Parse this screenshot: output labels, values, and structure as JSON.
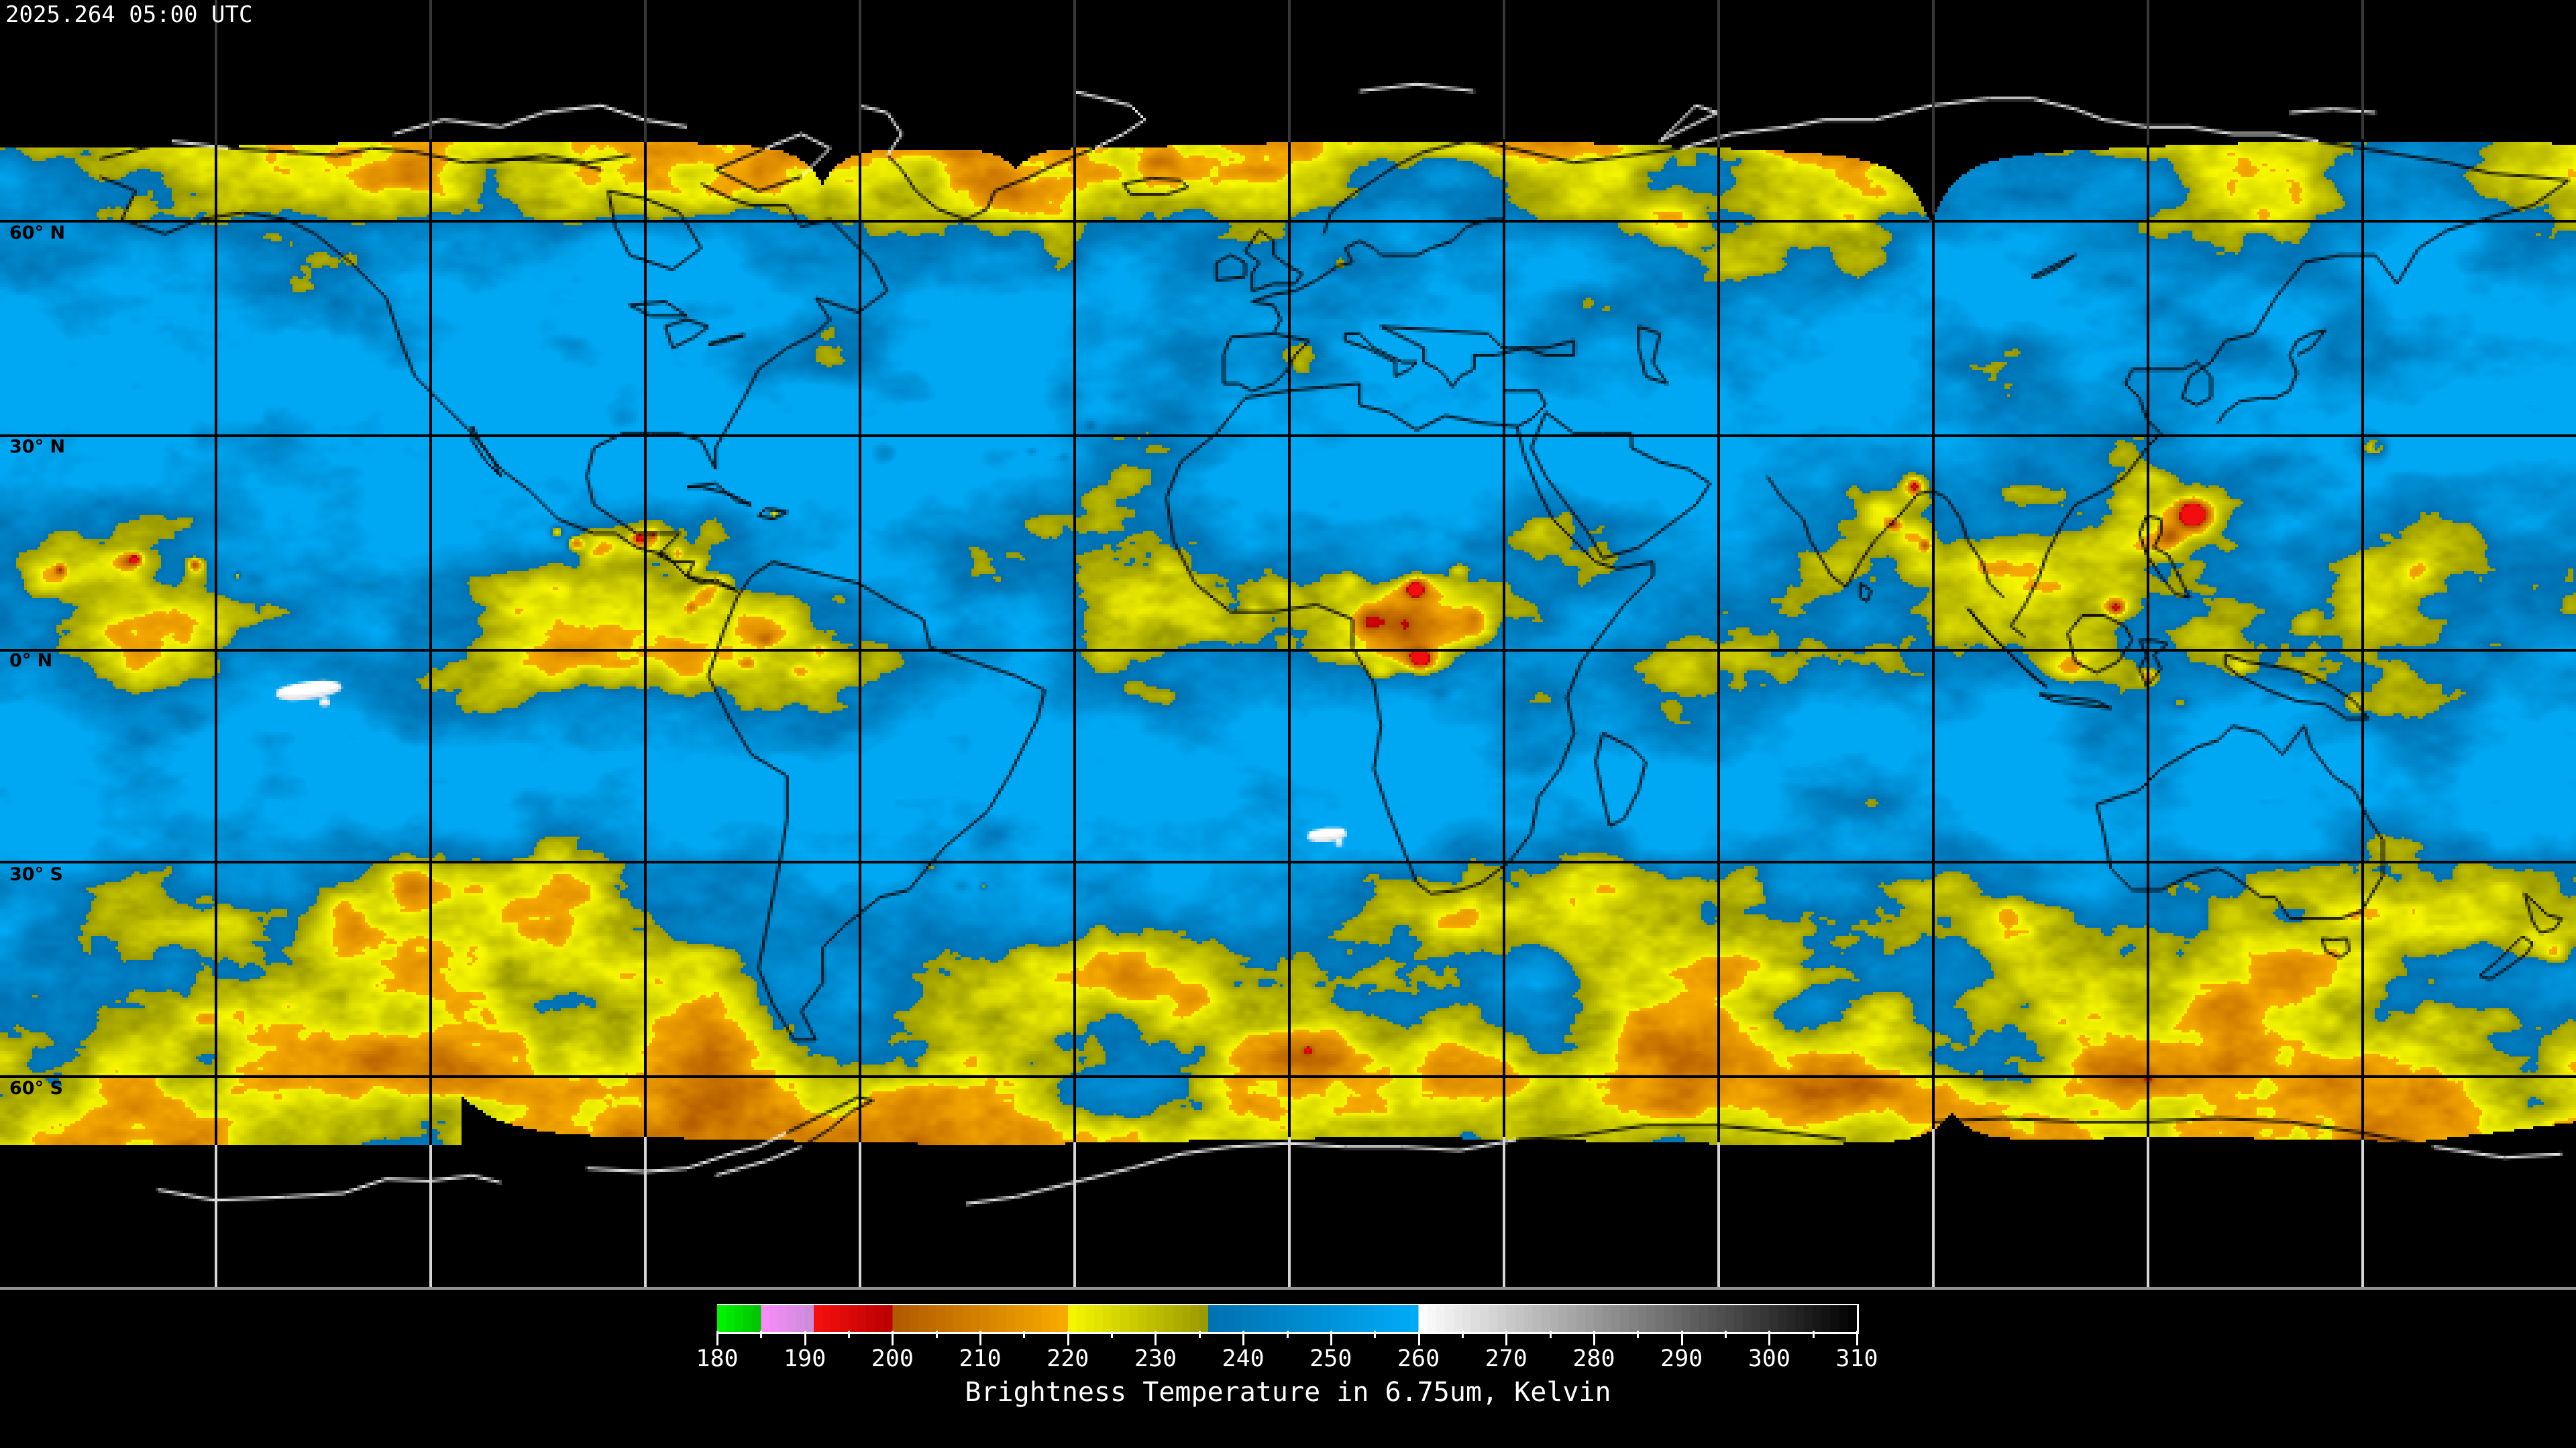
{
  "title_bar": {
    "timestamp": "2025.264 05:00 UTC"
  },
  "map": {
    "latitude_labels": [
      {
        "label": "60° N",
        "lat": 60
      },
      {
        "label": "30° N",
        "lat": 30
      },
      {
        "label": "0° N",
        "lat": 0
      },
      {
        "label": "30° S",
        "lat": -30
      },
      {
        "label": "60° S",
        "lat": -60
      }
    ],
    "longitude_gridline_spacing_deg": 30,
    "latitude_gridline_spacing_deg": 30,
    "no_data_color": "#000000",
    "gridline_color_over_data": "#000000",
    "gridline_color_over_void_north": "#383838",
    "gridline_color_over_void_south": "#d6d6d6",
    "frame_line_color": "#909090"
  },
  "colorbar": {
    "caption": "Brightness Temperature in 6.75um, Kelvin",
    "min_kelvin": 180,
    "max_kelvin": 310,
    "major_tick_labels": [
      "180",
      "190",
      "200",
      "210",
      "220",
      "230",
      "240",
      "250",
      "260",
      "270",
      "280",
      "290",
      "300",
      "310"
    ],
    "major_tick_step_kelvin": 10,
    "minor_tick_step_kelvin": 5,
    "segments": [
      {
        "name": "green",
        "from": 180,
        "to": 185,
        "color_start": "#00f800",
        "color_end": "#00c000"
      },
      {
        "name": "violet",
        "from": 185,
        "to": 191,
        "color_start": "#fc8cfc",
        "color_end": "#c88cd8"
      },
      {
        "name": "red",
        "from": 191,
        "to": 200,
        "color_start": "#f81010",
        "color_end": "#b80000"
      },
      {
        "name": "orange",
        "from": 200,
        "to": 220,
        "color_start": "#b05800",
        "color_end": "#f8ac00"
      },
      {
        "name": "yellow",
        "from": 220,
        "to": 236,
        "color_start": "#f8f800",
        "color_end": "#989800"
      },
      {
        "name": "blue",
        "from": 236,
        "to": 260,
        "color_start": "#0070b0",
        "color_end": "#00acf8"
      },
      {
        "name": "grayscale",
        "from": 260,
        "to": 310,
        "color_start": "#ffffff",
        "color_end": "#000000"
      }
    ]
  },
  "chart_data": {
    "type": "heatmap",
    "title": "Brightness Temperature in 6.75um, Kelvin",
    "timestamp_label": "2025.264 05:00 UTC",
    "value_range_kelvin": [
      180,
      310
    ],
    "colorbar_ticks_kelvin": [
      180,
      190,
      200,
      210,
      220,
      230,
      240,
      250,
      260,
      270,
      280,
      290,
      300,
      310
    ],
    "latitude_gridlines_deg": [
      60,
      30,
      0,
      -30,
      -60
    ],
    "longitude_gridline_spacing_deg": 30,
    "legend_position": "bottom-center",
    "notes_visible_features": "global water-vapor mosaic: blue = warm/dry (236-260K), yellow-olive = moist (220-236K), orange (200-220K) and red (<200K) = cold convective cloud tops, white = >260K; black = no satellite coverage at poles"
  }
}
